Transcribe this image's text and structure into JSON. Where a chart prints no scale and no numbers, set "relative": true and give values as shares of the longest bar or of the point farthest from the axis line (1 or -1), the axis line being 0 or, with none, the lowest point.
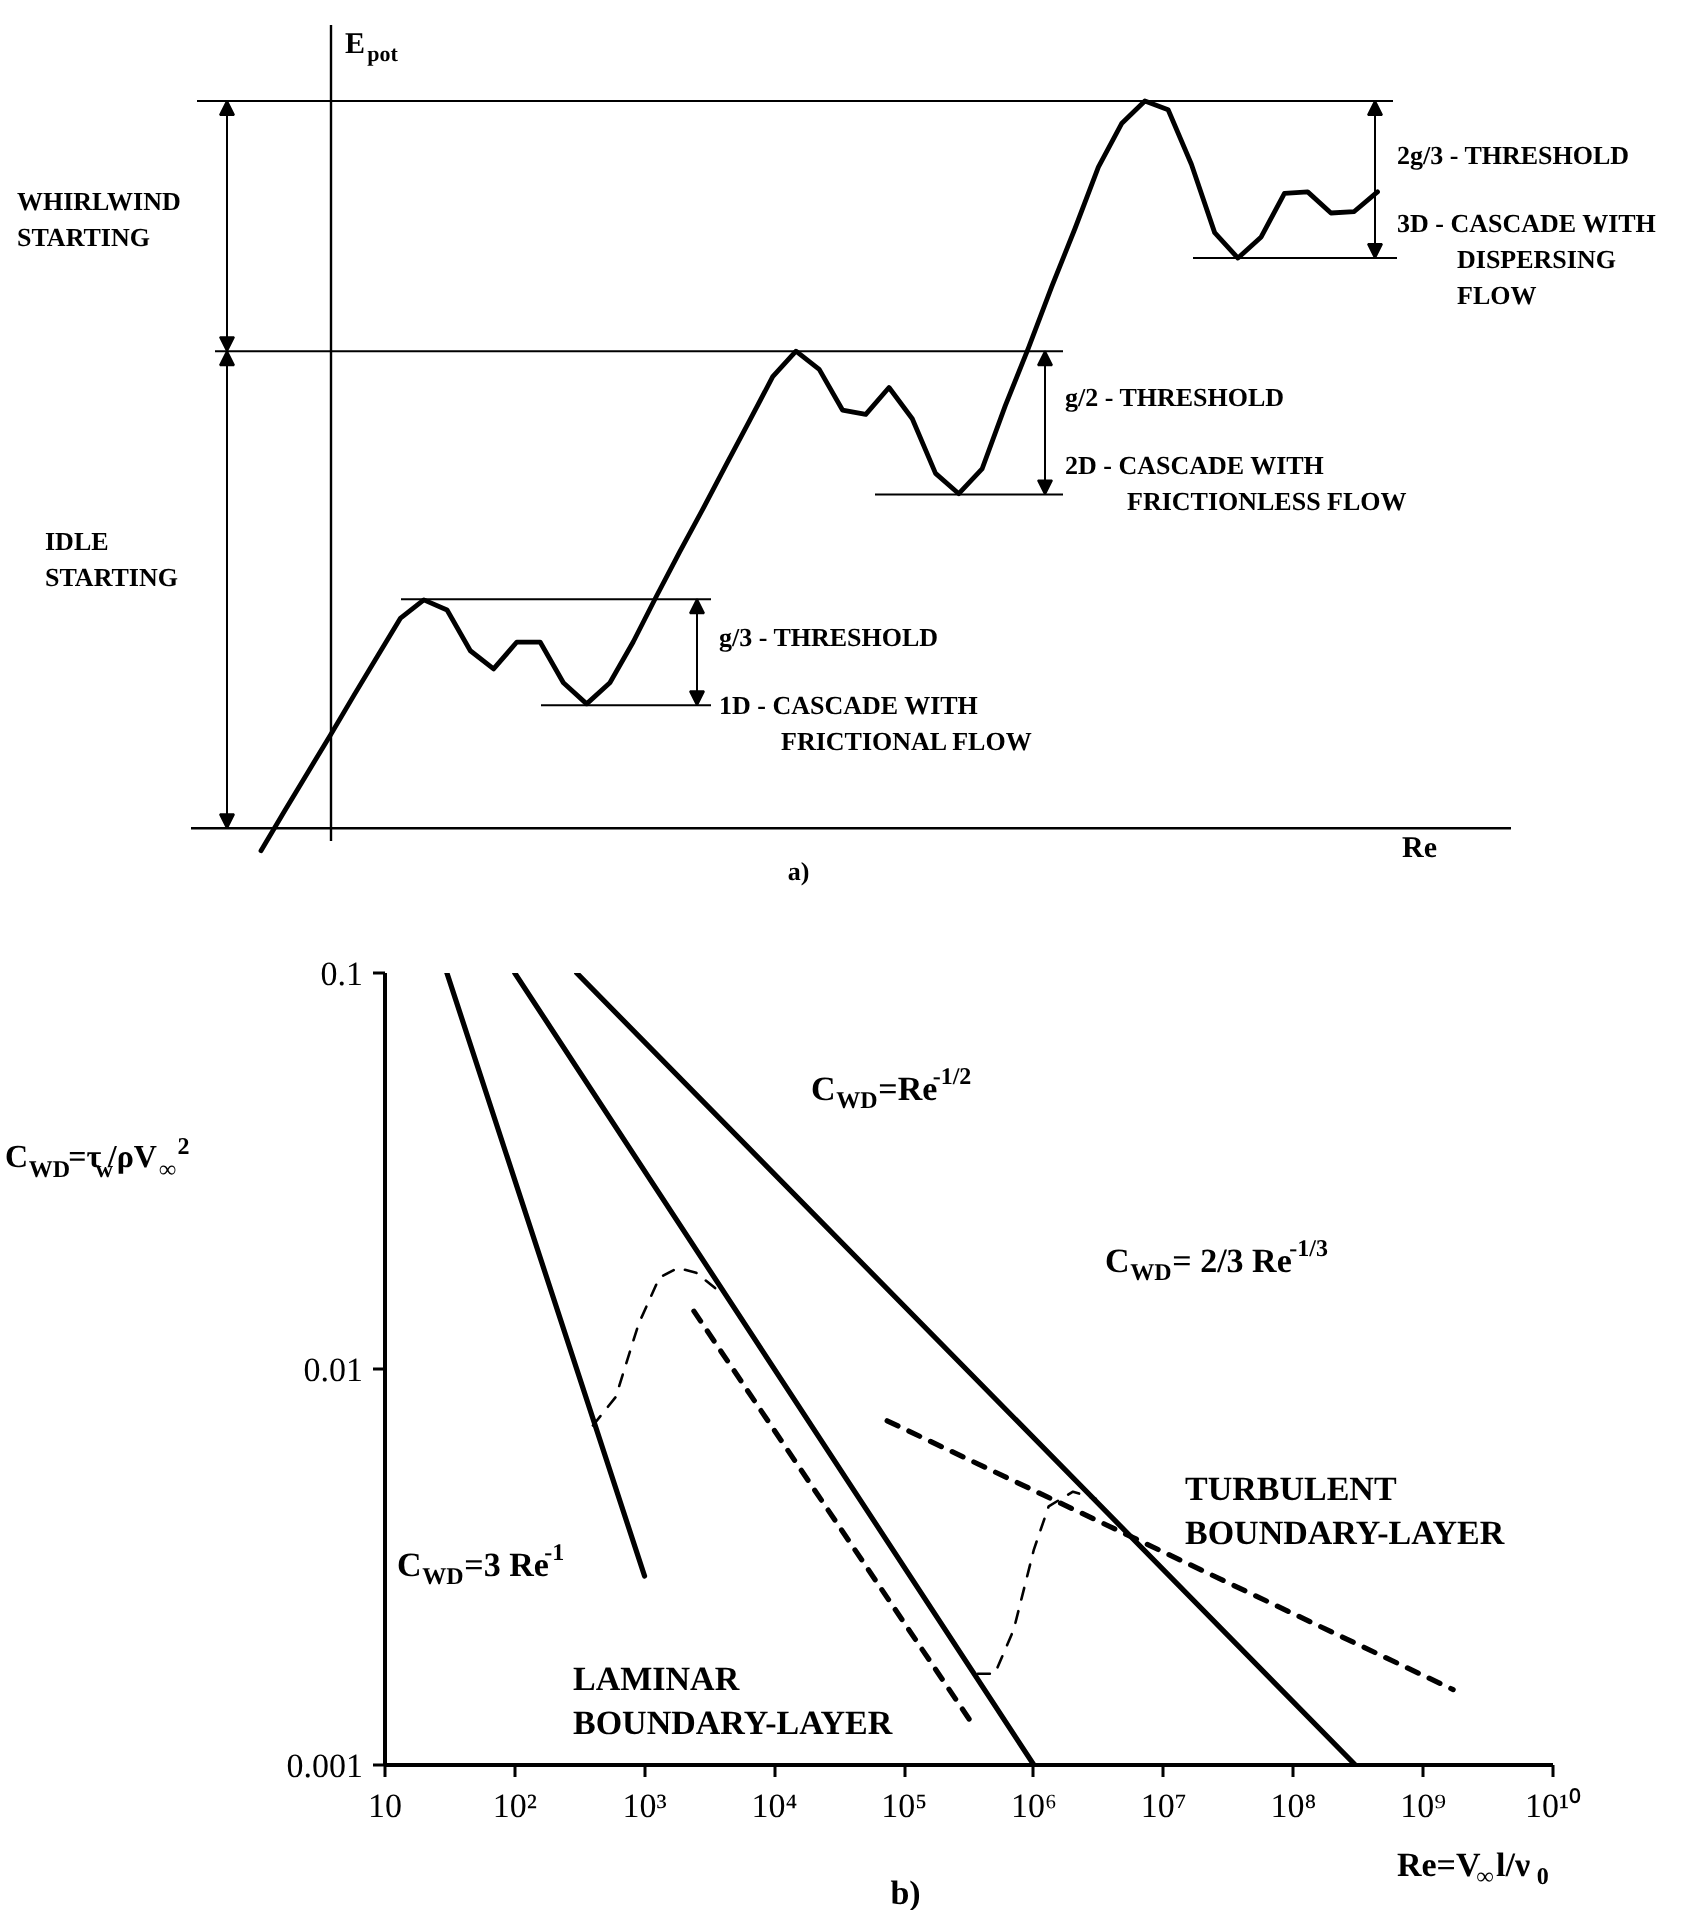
{
  "chart_data": [
    {
      "type": "line",
      "relative": true,
      "xlabel": "Re",
      "ylabel": "E$_{pot}$",
      "categories": [
        null,
        null,
        null,
        null,
        null,
        null,
        null,
        null,
        null,
        null,
        null,
        null,
        null,
        null,
        null,
        null,
        null,
        null,
        null,
        null,
        null,
        null,
        null,
        null,
        null,
        null,
        null,
        null,
        null,
        null,
        null,
        null,
        null,
        null,
        null,
        null,
        null,
        null,
        null,
        null,
        null,
        null,
        null,
        null,
        null,
        null,
        null,
        null,
        null
      ],
      "series": [
        {
          "color": "#000000",
          "values": [
            -0.031,
            0.023,
            0.076,
            0.129,
            0.183,
            0.236,
            0.289,
            0.314,
            0.3,
            0.244,
            0.219,
            0.256,
            0.256,
            0.2,
            0.171,
            0.2,
            0.256,
            0.319,
            0.38,
            0.439,
            0.5,
            0.56,
            0.621,
            0.656,
            0.631,
            0.575,
            0.569,
            0.606,
            0.563,
            0.488,
            0.46,
            0.494,
            0.581,
            0.661,
            0.745,
            0.825,
            0.909,
            0.969,
            1.0,
            0.988,
            0.913,
            0.819,
            0.784,
            0.813,
            0.873,
            0.875,
            0.846,
            0.848,
            0.875
          ]
        }
      ],
      "ref_lines": [
        {
          "axis": "y",
          "value": 1.0
        },
        {
          "axis": "y",
          "value": 0.784
        },
        {
          "axis": "y",
          "value": 0.656
        },
        {
          "axis": "y",
          "value": 0.459
        },
        {
          "axis": "y",
          "value": 0.315
        },
        {
          "axis": "y",
          "value": 0.169
        }
      ],
      "annotations": [
        "a)",
        "WHIRLWIND STARTING",
        "IDLE STARTING",
        "2g/3 - THRESHOLD",
        "3D - CASCADE WITH DISPERSING FLOW",
        "g/2 - THRESHOLD",
        "2D - CASCADE WITH FRICTIONLESS FLOW",
        "g/3 - THRESHOLD",
        "1D - CASCADE WITH FRICTIONAL FLOW"
      ]
    },
    {
      "type": "line",
      "log": "xy",
      "xlabel": "Re=V$_{∞}$l/ν$_{0}$",
      "ylabel": "C$_{WD}$=τ$_{w}$/ρV$_{∞}$$^{2}$",
      "xlim": [
        10,
        10000000000
      ],
      "ylim": [
        0.001,
        0.1
      ],
      "xticks": [
        10,
        {
          "value": 100,
          "label": "10²"
        },
        {
          "value": 1000,
          "label": "10³"
        },
        {
          "value": 10000,
          "label": "10⁴"
        },
        {
          "value": 100000,
          "label": "10⁵"
        },
        {
          "value": 1000000,
          "label": "10⁶"
        },
        {
          "value": 10000000,
          "label": "10⁷"
        },
        {
          "value": 100000000,
          "label": "10⁸"
        },
        {
          "value": 1000000000,
          "label": "10⁹"
        },
        {
          "value": 10000000000,
          "label": "10¹⁰"
        }
      ],
      "yticks": [
        0.001,
        0.01,
        0.1
      ],
      "series": [
        {
          "color": "#000000",
          "line_style": "solid",
          "x": [
            30,
            1000
          ],
          "values": [
            0.1,
            0.003
          ]
        },
        {
          "color": "#000000",
          "line_style": "solid",
          "x": [
            100,
            1000000
          ],
          "values": [
            0.1,
            0.001
          ]
        },
        {
          "color": "#000000",
          "line_style": "solid",
          "x": [
            300,
            300000000
          ],
          "values": [
            0.1,
            0.001
          ]
        },
        {
          "color": "#000000",
          "line_style": "dashed",
          "x": [
            2400,
            320000
          ],
          "values": [
            0.014,
            0.0013
          ]
        },
        {
          "color": "#000000",
          "line_style": "dashed",
          "x": [
            74000,
            1700000000
          ],
          "values": [
            0.0074,
            0.00155
          ]
        },
        {
          "color": "#000000",
          "line_style": "dashed",
          "x": [
            400,
            600,
            900,
            1300,
            1800,
            2500,
            3500
          ],
          "values": [
            0.0072,
            0.0085,
            0.013,
            0.017,
            0.018,
            0.0175,
            0.016
          ]
        },
        {
          "color": "#000000",
          "line_style": "dashed",
          "x": [
            370000,
            500000,
            700000,
            1000000,
            1300000,
            2000000,
            3000000
          ],
          "values": [
            0.0017,
            0.0017,
            0.0022,
            0.0035,
            0.0045,
            0.0049,
            0.0047
          ]
        }
      ],
      "annotations": [
        "C$_{WD}$=Re$^{-1/2}$",
        "C$_{WD}$= 2/3 Re$^{-1/3}$",
        "C$_{WD}$=3 Re$^{-1}$",
        "LAMINAR BOUNDARY-LAYER",
        "TURBULENT BOUNDARY-LAYER",
        "b)"
      ]
    }
  ]
}
